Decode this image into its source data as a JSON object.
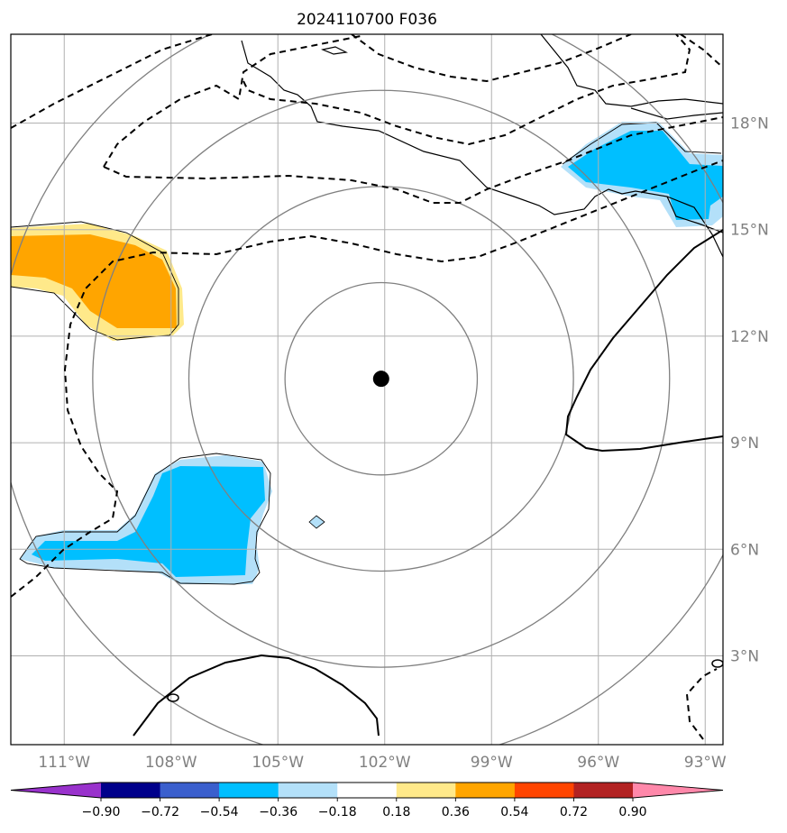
{
  "title": "2024110700 F036",
  "map": {
    "extent_lon": [
      -112.5,
      -92.5
    ],
    "extent_lat": [
      0.5,
      20.5
    ],
    "lat_ticks": [
      {
        "value": 3,
        "label": "3°N"
      },
      {
        "value": 6,
        "label": "6°N"
      },
      {
        "value": 9,
        "label": "9°N"
      },
      {
        "value": 12,
        "label": "12°N"
      },
      {
        "value": 15,
        "label": "15°N"
      },
      {
        "value": 18,
        "label": "18°N"
      }
    ],
    "lon_ticks": [
      {
        "value": -111,
        "label": "111°W"
      },
      {
        "value": -108,
        "label": "108°W"
      },
      {
        "value": -105,
        "label": "105°W"
      },
      {
        "value": -102,
        "label": "102°W"
      },
      {
        "value": -99,
        "label": "99°W"
      },
      {
        "value": -96,
        "label": "96°W"
      },
      {
        "value": -93,
        "label": "93°W"
      }
    ],
    "center": {
      "lon": -102.1,
      "lat": 10.8
    },
    "range_rings_deg": [
      2.7,
      5.4,
      8.1,
      10.8
    ],
    "contour_labels": [
      {
        "text": "0",
        "lon": -108.5,
        "lat": 2.3
      },
      {
        "text": "0",
        "lon": -92.7,
        "lat": 2.5
      }
    ],
    "colors": {
      "grid": "#b0b0b0",
      "ring": "#808080",
      "positive_light": "#ffe98a",
      "positive_dark": "#ffa500",
      "negative_light": "#b3e0f9",
      "negative_dark": "#00bfff"
    }
  },
  "colorbar": {
    "labels": [
      "−0.90",
      "−0.72",
      "−0.54",
      "−0.36",
      "−0.18",
      "0.18",
      "0.36",
      "0.54",
      "0.72",
      "0.90"
    ],
    "colors": [
      "#9932cc",
      "#00008b",
      "#3a5fcd",
      "#00bfff",
      "#b3e0f9",
      "#ffffff",
      "#ffe98a",
      "#ffa500",
      "#ff4500",
      "#b22222",
      "#ff88aa"
    ]
  }
}
